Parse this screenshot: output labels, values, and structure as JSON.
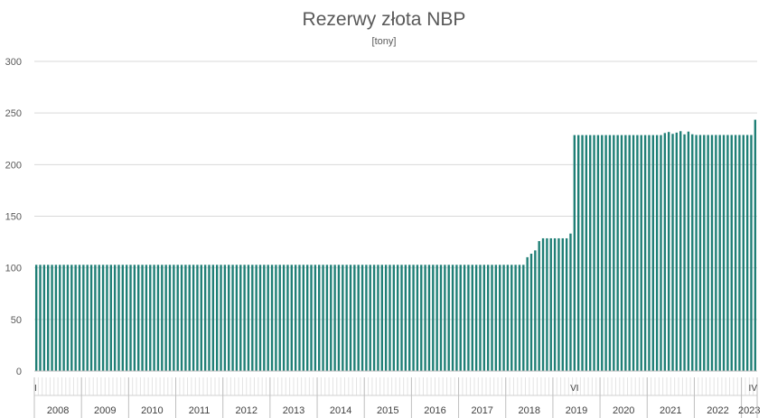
{
  "chart_data": {
    "type": "bar",
    "title": "Rezerwy złota NBP",
    "subtitle": "[tony]",
    "xlabel": "",
    "ylabel": "",
    "ylim": [
      0,
      300
    ],
    "yticks": [
      0,
      50,
      100,
      150,
      200,
      250,
      300
    ],
    "grid": true,
    "legend": "none",
    "bar_color": "#1f7f76",
    "start": "2008-01",
    "end": "2023-04",
    "years": [
      "2008",
      "2009",
      "2010",
      "2011",
      "2012",
      "2013",
      "2014",
      "2015",
      "2016",
      "2017",
      "2018",
      "2019",
      "2020",
      "2021",
      "2022",
      "2023"
    ],
    "month_labels": [
      {
        "month": "2008-01",
        "label": "I"
      },
      {
        "month": "2019-06",
        "label": "VI"
      },
      {
        "month": "2023-04",
        "label": "IV"
      }
    ],
    "segments": [
      {
        "from": "2008-01",
        "to": "2018-05",
        "value": 102.9
      },
      {
        "from": "2018-06",
        "to": "2018-06",
        "value": 110.3
      },
      {
        "from": "2018-07",
        "to": "2018-07",
        "value": 113.7
      },
      {
        "from": "2018-08",
        "to": "2018-08",
        "value": 116.9
      },
      {
        "from": "2018-09",
        "to": "2018-09",
        "value": 125.9
      },
      {
        "from": "2018-10",
        "to": "2019-04",
        "value": 128.6
      },
      {
        "from": "2019-05",
        "to": "2019-05",
        "value": 133.2
      },
      {
        "from": "2019-06",
        "to": "2021-04",
        "value": 228.6
      },
      {
        "from": "2021-05",
        "to": "2021-05",
        "value": 230.6
      },
      {
        "from": "2021-06",
        "to": "2021-06",
        "value": 231.6
      },
      {
        "from": "2021-07",
        "to": "2021-07",
        "value": 229.8
      },
      {
        "from": "2021-08",
        "to": "2021-08",
        "value": 231.0
      },
      {
        "from": "2021-09",
        "to": "2021-09",
        "value": 232.4
      },
      {
        "from": "2021-10",
        "to": "2021-10",
        "value": 229.3
      },
      {
        "from": "2021-11",
        "to": "2021-11",
        "value": 232.0
      },
      {
        "from": "2021-12",
        "to": "2021-12",
        "value": 229.4
      },
      {
        "from": "2022-01",
        "to": "2023-03",
        "value": 228.7
      },
      {
        "from": "2023-04",
        "to": "2023-04",
        "value": 243.5
      }
    ]
  }
}
